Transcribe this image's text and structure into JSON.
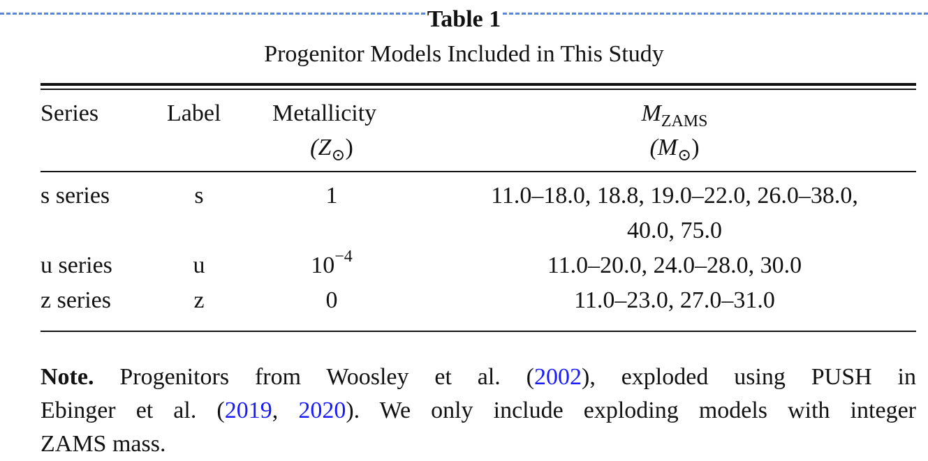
{
  "table": {
    "title": "Table 1",
    "subtitle": "Progenitor Models Included in This Study",
    "headers": {
      "series": "Series",
      "label": "Label",
      "metallicity": "Metallicity",
      "metallicity_unit_prefix": "(Z",
      "metallicity_unit_sub": "⊙",
      "metallicity_unit_suffix": ")",
      "mass_symbol": "M",
      "mass_sub": "ZAMS",
      "mass_unit_prefix": "(M",
      "mass_unit_sub": "⊙",
      "mass_unit_suffix": ")"
    },
    "rows": [
      {
        "series": "s series",
        "label": "s",
        "metallicity": "1",
        "mass_line1": "11.0–18.0, 18.8, 19.0–22.0, 26.0–38.0,",
        "mass_line2": "40.0, 75.0"
      },
      {
        "series": "u series",
        "label": "u",
        "metallicity_base": "10",
        "metallicity_exp": "−4",
        "mass_line1": "11.0–20.0, 24.0–28.0, 30.0"
      },
      {
        "series": "z series",
        "label": "z",
        "metallicity": "0",
        "mass_line1": "11.0–23.0, 27.0–31.0"
      }
    ]
  },
  "note": {
    "label": "Note.",
    "line1_text_a": " Progenitors from Woosley et al. (",
    "ref1": "2002",
    "line1_text_b": "), exploded using PUSH in",
    "line2_text_a": "Ebinger et al. (",
    "ref2": "2019",
    "line2_sep": ", ",
    "ref3": "2020",
    "line2_text_b": "). We only include exploding models with integer",
    "line3_text": "ZAMS mass."
  },
  "colors": {
    "link": "#1a1aff",
    "dash": "#5b86d6"
  }
}
